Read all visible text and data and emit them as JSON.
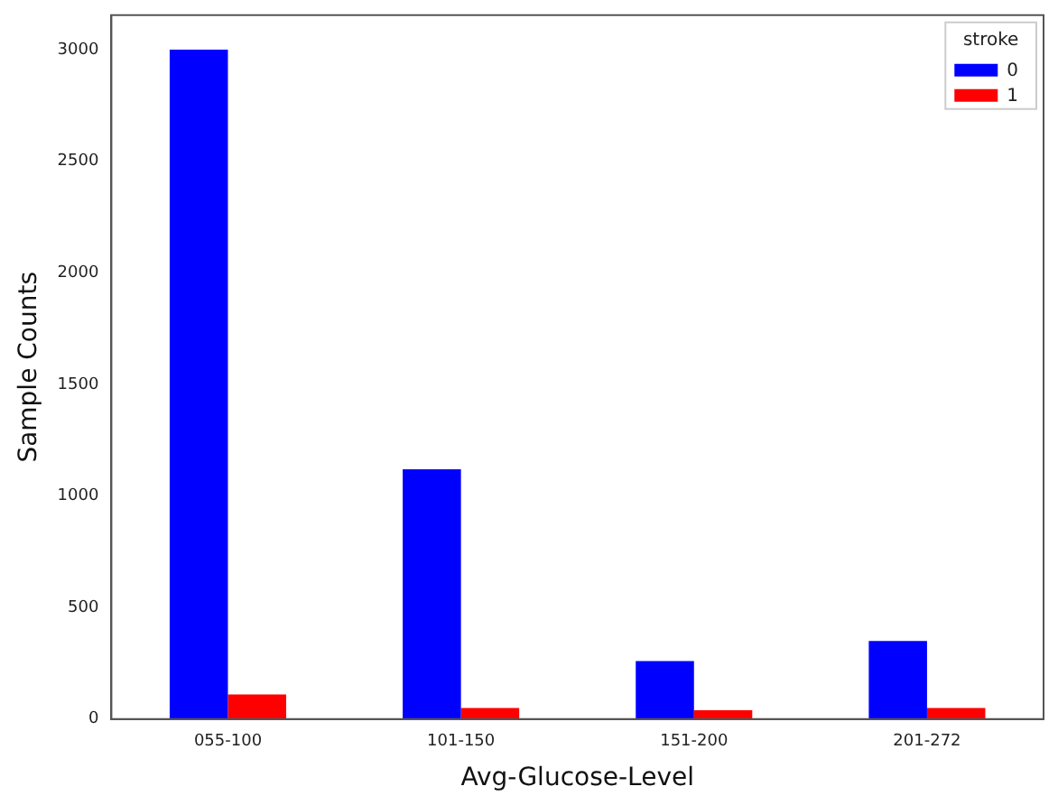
{
  "chart_data": {
    "type": "bar",
    "xlabel": "Avg-Glucose-Level",
    "ylabel": "Sample Counts",
    "legend_title": "stroke",
    "legend": "top right",
    "grid": false,
    "categories": [
      "055-100",
      "101-150",
      "151-200",
      "201-272"
    ],
    "series": [
      {
        "name": "0",
        "color": "#0000ff",
        "values": [
          3000,
          1120,
          260,
          350
        ]
      },
      {
        "name": "1",
        "color": "#ff0000",
        "values": [
          110,
          50,
          40,
          50
        ]
      }
    ],
    "ylim": [
      0,
      3155
    ],
    "yticks": [
      0,
      500,
      1000,
      1500,
      2000,
      2500,
      3000
    ]
  }
}
